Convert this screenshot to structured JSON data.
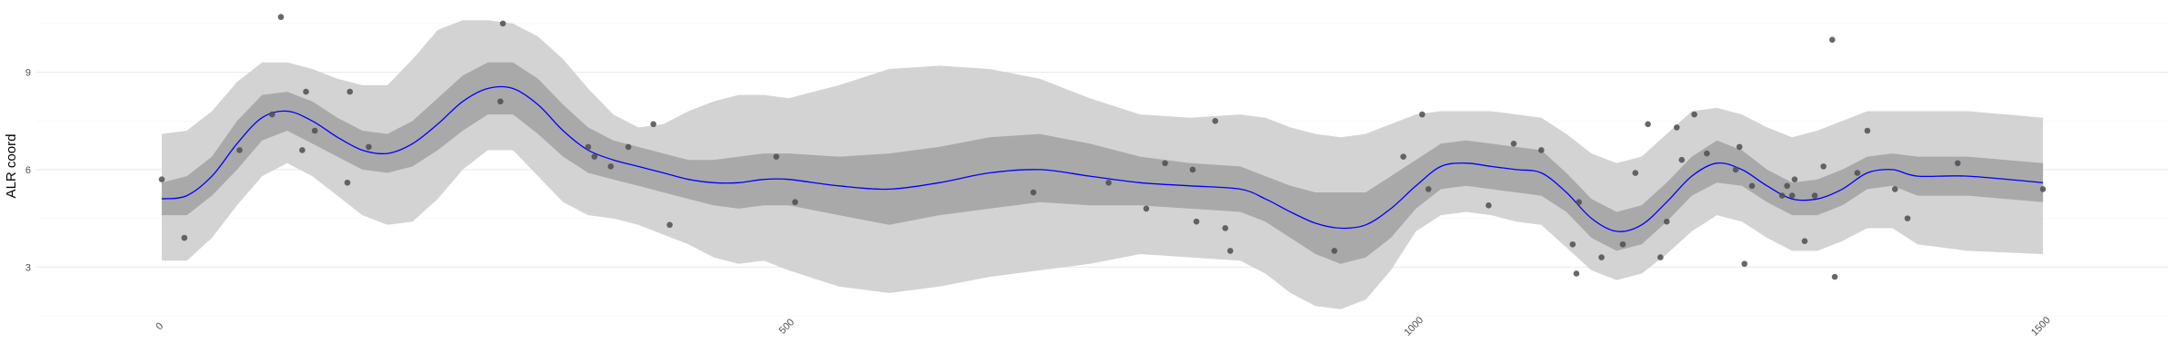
{
  "chart_data": {
    "type": "scatter",
    "title": "",
    "xlabel": "",
    "ylabel": "ALR coord",
    "xlim": [
      -100,
      1600
    ],
    "ylim": [
      1.5,
      11.0
    ],
    "x_ticks": [
      0,
      500,
      1000,
      1500
    ],
    "x_tick_labels": [
      "0",
      "500",
      "1000",
      "1500"
    ],
    "y_ticks": [
      3,
      6,
      9
    ],
    "y_tick_labels": [
      "3",
      "6",
      "9"
    ],
    "grid": true,
    "legend": "none",
    "colors": {
      "points": "#4d4d4d",
      "mean_line": "#0000ff",
      "inner_band": "#a9a9a9",
      "outer_band": "#d3d3d3",
      "grid": "#ebebeb"
    },
    "points": [
      {
        "x": 0,
        "y": 5.7
      },
      {
        "x": 18,
        "y": 3.9
      },
      {
        "x": 62,
        "y": 6.6
      },
      {
        "x": 88,
        "y": 7.7
      },
      {
        "x": 95,
        "y": 10.7
      },
      {
        "x": 112,
        "y": 6.6
      },
      {
        "x": 115,
        "y": 8.4
      },
      {
        "x": 122,
        "y": 7.2
      },
      {
        "x": 148,
        "y": 5.6
      },
      {
        "x": 150,
        "y": 8.4
      },
      {
        "x": 165,
        "y": 6.7
      },
      {
        "x": 270,
        "y": 8.1
      },
      {
        "x": 272,
        "y": 10.5
      },
      {
        "x": 340,
        "y": 6.7
      },
      {
        "x": 345,
        "y": 6.4
      },
      {
        "x": 358,
        "y": 6.1
      },
      {
        "x": 372,
        "y": 6.7
      },
      {
        "x": 392,
        "y": 7.4
      },
      {
        "x": 405,
        "y": 4.3
      },
      {
        "x": 490,
        "y": 6.4
      },
      {
        "x": 505,
        "y": 5.0
      },
      {
        "x": 695,
        "y": 5.3
      },
      {
        "x": 755,
        "y": 5.6
      },
      {
        "x": 785,
        "y": 4.8
      },
      {
        "x": 800,
        "y": 6.2
      },
      {
        "x": 822,
        "y": 6.0
      },
      {
        "x": 825,
        "y": 4.4
      },
      {
        "x": 840,
        "y": 7.5
      },
      {
        "x": 848,
        "y": 4.2
      },
      {
        "x": 852,
        "y": 3.5
      },
      {
        "x": 935,
        "y": 3.5
      },
      {
        "x": 990,
        "y": 6.4
      },
      {
        "x": 1005,
        "y": 7.7
      },
      {
        "x": 1010,
        "y": 5.4
      },
      {
        "x": 1058,
        "y": 4.9
      },
      {
        "x": 1078,
        "y": 6.8
      },
      {
        "x": 1100,
        "y": 6.6
      },
      {
        "x": 1125,
        "y": 3.7
      },
      {
        "x": 1128,
        "y": 2.8
      },
      {
        "x": 1130,
        "y": 5.0
      },
      {
        "x": 1148,
        "y": 3.3
      },
      {
        "x": 1165,
        "y": 3.7
      },
      {
        "x": 1175,
        "y": 5.9
      },
      {
        "x": 1185,
        "y": 7.4
      },
      {
        "x": 1195,
        "y": 3.3
      },
      {
        "x": 1200,
        "y": 4.4
      },
      {
        "x": 1208,
        "y": 7.3
      },
      {
        "x": 1212,
        "y": 6.3
      },
      {
        "x": 1222,
        "y": 7.7
      },
      {
        "x": 1232,
        "y": 6.5
      },
      {
        "x": 1255,
        "y": 6.0
      },
      {
        "x": 1258,
        "y": 6.7
      },
      {
        "x": 1262,
        "y": 3.1
      },
      {
        "x": 1268,
        "y": 5.5
      },
      {
        "x": 1292,
        "y": 5.2
      },
      {
        "x": 1296,
        "y": 5.5
      },
      {
        "x": 1300,
        "y": 5.2
      },
      {
        "x": 1302,
        "y": 5.7
      },
      {
        "x": 1310,
        "y": 3.8
      },
      {
        "x": 1318,
        "y": 5.2
      },
      {
        "x": 1325,
        "y": 6.1
      },
      {
        "x": 1332,
        "y": 10.0
      },
      {
        "x": 1334,
        "y": 2.7
      },
      {
        "x": 1352,
        "y": 5.9
      },
      {
        "x": 1360,
        "y": 7.2
      },
      {
        "x": 1382,
        "y": 5.4
      },
      {
        "x": 1392,
        "y": 4.5
      },
      {
        "x": 1432,
        "y": 6.2
      },
      {
        "x": 1500,
        "y": 5.4
      }
    ],
    "mean_curve": {
      "x": [
        0,
        20,
        40,
        60,
        80,
        100,
        120,
        140,
        160,
        180,
        200,
        220,
        240,
        260,
        280,
        300,
        320,
        340,
        360,
        380,
        400,
        420,
        440,
        460,
        480,
        500,
        540,
        580,
        620,
        660,
        700,
        740,
        780,
        820,
        860,
        880,
        900,
        920,
        940,
        960,
        980,
        1000,
        1020,
        1040,
        1060,
        1080,
        1100,
        1120,
        1140,
        1160,
        1180,
        1200,
        1220,
        1240,
        1260,
        1280,
        1300,
        1320,
        1340,
        1360,
        1380,
        1400,
        1440,
        1500
      ],
      "y": [
        5.1,
        5.2,
        5.8,
        6.8,
        7.6,
        7.8,
        7.5,
        7.0,
        6.6,
        6.5,
        6.8,
        7.4,
        8.1,
        8.5,
        8.5,
        8.0,
        7.2,
        6.6,
        6.3,
        6.1,
        5.9,
        5.7,
        5.6,
        5.6,
        5.7,
        5.7,
        5.5,
        5.4,
        5.6,
        5.9,
        6.0,
        5.8,
        5.6,
        5.5,
        5.4,
        5.1,
        4.7,
        4.35,
        4.2,
        4.3,
        4.8,
        5.5,
        6.1,
        6.2,
        6.1,
        6.0,
        5.9,
        5.3,
        4.5,
        4.1,
        4.3,
        5.0,
        5.8,
        6.2,
        6.0,
        5.5,
        5.1,
        5.1,
        5.4,
        5.9,
        6.0,
        5.8,
        5.8,
        5.6
      ]
    },
    "inner_band": {
      "x": [
        0,
        20,
        40,
        60,
        80,
        100,
        120,
        140,
        160,
        180,
        200,
        220,
        240,
        260,
        280,
        300,
        320,
        340,
        360,
        380,
        400,
        420,
        440,
        460,
        480,
        500,
        540,
        580,
        620,
        660,
        700,
        740,
        780,
        820,
        860,
        880,
        900,
        920,
        940,
        960,
        980,
        1000,
        1020,
        1040,
        1060,
        1080,
        1100,
        1120,
        1140,
        1160,
        1180,
        1200,
        1220,
        1240,
        1260,
        1280,
        1300,
        1320,
        1340,
        1360,
        1380,
        1400,
        1440,
        1500
      ],
      "lower": [
        4.6,
        4.6,
        5.2,
        6.0,
        6.9,
        7.2,
        6.8,
        6.4,
        6.0,
        5.9,
        6.1,
        6.6,
        7.2,
        7.7,
        7.7,
        7.1,
        6.4,
        5.9,
        5.7,
        5.5,
        5.3,
        5.1,
        4.9,
        4.8,
        4.9,
        4.9,
        4.6,
        4.3,
        4.6,
        4.8,
        5.0,
        4.9,
        4.9,
        4.8,
        4.7,
        4.4,
        3.9,
        3.4,
        3.1,
        3.3,
        3.9,
        4.8,
        5.4,
        5.5,
        5.4,
        5.3,
        5.2,
        4.7,
        3.9,
        3.5,
        3.7,
        4.4,
        5.2,
        5.6,
        5.5,
        5.0,
        4.6,
        4.6,
        4.9,
        5.4,
        5.5,
        5.2,
        5.2,
        5.0
      ],
      "upper": [
        5.6,
        5.8,
        6.4,
        7.5,
        8.3,
        8.4,
        8.1,
        7.6,
        7.2,
        7.1,
        7.5,
        8.2,
        8.9,
        9.3,
        9.3,
        8.8,
        8.0,
        7.3,
        6.9,
        6.7,
        6.5,
        6.3,
        6.3,
        6.4,
        6.5,
        6.5,
        6.4,
        6.5,
        6.7,
        7.0,
        7.1,
        6.8,
        6.4,
        6.2,
        6.1,
        5.8,
        5.5,
        5.3,
        5.3,
        5.3,
        5.8,
        6.3,
        6.8,
        6.9,
        6.8,
        6.7,
        6.6,
        5.9,
        5.1,
        4.7,
        4.9,
        5.6,
        6.4,
        6.9,
        6.6,
        6.0,
        5.6,
        5.7,
        6.0,
        6.4,
        6.5,
        6.4,
        6.4,
        6.2
      ]
    },
    "outer_band": {
      "x": [
        0,
        20,
        40,
        60,
        80,
        100,
        120,
        140,
        160,
        180,
        200,
        220,
        240,
        260,
        280,
        300,
        320,
        340,
        360,
        380,
        400,
        420,
        440,
        460,
        480,
        500,
        540,
        580,
        620,
        660,
        700,
        740,
        780,
        820,
        860,
        880,
        900,
        920,
        940,
        960,
        980,
        1000,
        1020,
        1040,
        1060,
        1080,
        1100,
        1120,
        1140,
        1160,
        1180,
        1200,
        1220,
        1240,
        1260,
        1280,
        1300,
        1320,
        1340,
        1360,
        1380,
        1400,
        1440,
        1500
      ],
      "lower": [
        3.2,
        3.2,
        3.9,
        4.9,
        5.8,
        6.2,
        5.8,
        5.2,
        4.6,
        4.3,
        4.4,
        5.1,
        6.0,
        6.6,
        6.6,
        5.8,
        5.0,
        4.6,
        4.5,
        4.3,
        4.0,
        3.7,
        3.3,
        3.1,
        3.2,
        2.9,
        2.4,
        2.2,
        2.4,
        2.7,
        2.9,
        3.1,
        3.4,
        3.3,
        3.2,
        2.8,
        2.2,
        1.8,
        1.7,
        2.0,
        2.9,
        4.1,
        4.6,
        4.7,
        4.6,
        4.4,
        4.3,
        3.6,
        2.9,
        2.6,
        2.8,
        3.4,
        4.1,
        4.6,
        4.4,
        3.9,
        3.5,
        3.5,
        3.8,
        4.2,
        4.2,
        3.7,
        3.5,
        3.4
      ],
      "upper": [
        7.1,
        7.2,
        7.8,
        8.7,
        9.3,
        9.3,
        9.1,
        8.8,
        8.6,
        8.6,
        9.4,
        10.3,
        10.6,
        10.6,
        10.5,
        10.1,
        9.4,
        8.5,
        7.7,
        7.3,
        7.4,
        7.8,
        8.1,
        8.3,
        8.3,
        8.2,
        8.6,
        9.1,
        9.2,
        9.1,
        8.8,
        8.2,
        7.7,
        7.6,
        7.7,
        7.6,
        7.3,
        7.1,
        7.0,
        7.1,
        7.4,
        7.7,
        7.8,
        7.8,
        7.8,
        7.7,
        7.6,
        7.1,
        6.5,
        6.2,
        6.4,
        7.1,
        7.8,
        7.9,
        7.7,
        7.3,
        7.0,
        7.2,
        7.5,
        7.8,
        7.8,
        7.8,
        7.8,
        7.6
      ]
    }
  }
}
